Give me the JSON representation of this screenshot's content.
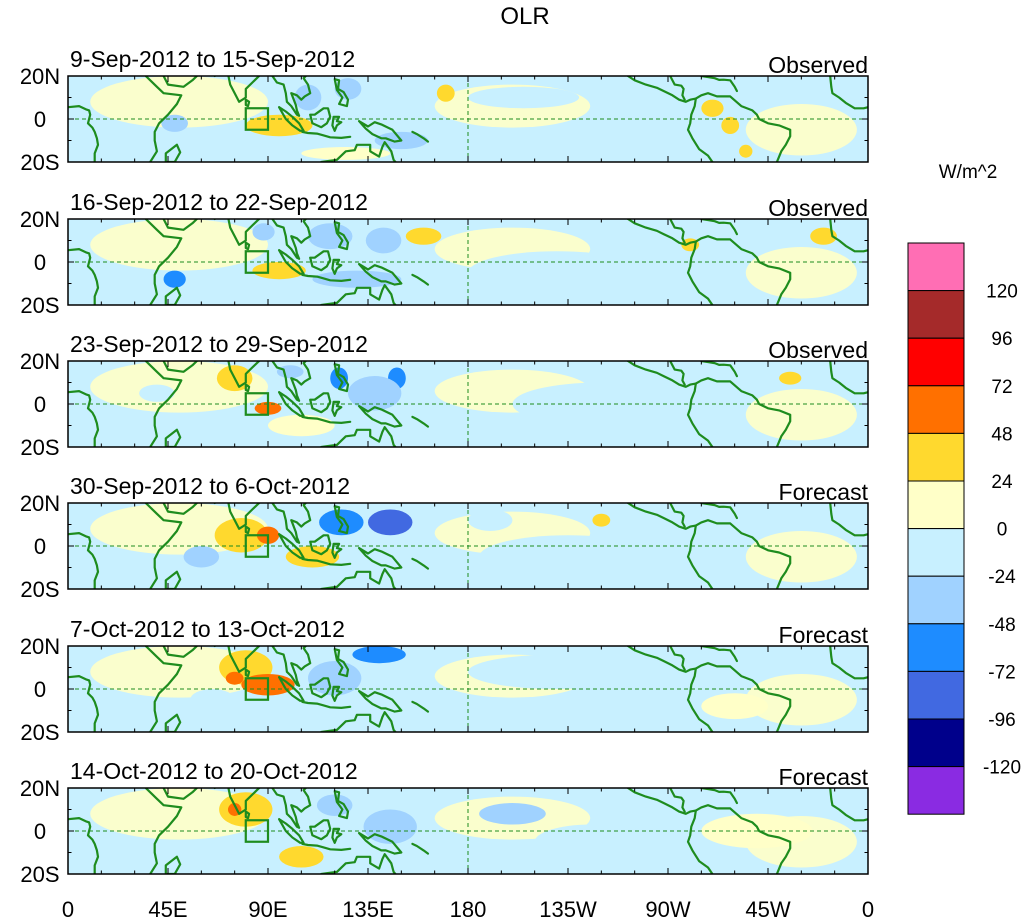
{
  "chart_data": {
    "type": "heatmap",
    "title": "OLR",
    "units_label": "W/m^2",
    "x_ticks": [
      {
        "lon": 0,
        "label": "0"
      },
      {
        "lon": 45,
        "label": "45E"
      },
      {
        "lon": 90,
        "label": "90E"
      },
      {
        "lon": 135,
        "label": "135E"
      },
      {
        "lon": 180,
        "label": "180"
      },
      {
        "lon": 225,
        "label": "135W"
      },
      {
        "lon": 270,
        "label": "90W"
      },
      {
        "lon": 315,
        "label": "45W"
      },
      {
        "lon": 360,
        "label": "0"
      }
    ],
    "y_ticks": [
      {
        "lat": 20,
        "label": "20N"
      },
      {
        "lat": 0,
        "label": "0"
      },
      {
        "lat": -20,
        "label": "20S"
      }
    ],
    "xlim": [
      0,
      360
    ],
    "ylim": [
      -20,
      20
    ],
    "colorbar": {
      "levels": [
        "120",
        "96",
        "72",
        "48",
        "24",
        "0",
        "-24",
        "-48",
        "-72",
        "-96",
        "-120"
      ],
      "colors": [
        "#ff6eb4",
        "#a52a2a",
        "#ff0000",
        "#ff7000",
        "#ffd92e",
        "#ffffc8",
        "#c8f0ff",
        "#a0d2ff",
        "#1e8cff",
        "#4169e1",
        "#00008b",
        "#8a2be2"
      ]
    },
    "box_region": {
      "lon": [
        80,
        90
      ],
      "lat": [
        -5,
        5
      ]
    },
    "panels": [
      {
        "date_range": "9-Sep-2012 to 15-Sep-2012",
        "status": "Observed",
        "anomalies": [
          {
            "lon": 48,
            "lat": -2,
            "rlon": 6,
            "rlat": 4,
            "value": -40
          },
          {
            "lon": 95,
            "lat": -3,
            "rlon": 15,
            "rlat": 5,
            "value": 30
          },
          {
            "lon": 108,
            "lat": 10,
            "rlon": 6,
            "rlat": 6,
            "value": -30
          },
          {
            "lon": 126,
            "lat": 14,
            "rlon": 6,
            "rlat": 5,
            "value": -35
          },
          {
            "lon": 150,
            "lat": -10,
            "rlon": 12,
            "rlat": 4,
            "value": -30
          },
          {
            "lon": 205,
            "lat": 10,
            "rlon": 25,
            "rlat": 5,
            "value": -20
          },
          {
            "lon": 125,
            "lat": -16,
            "rlon": 20,
            "rlat": 3,
            "value": 12
          },
          {
            "lon": 238,
            "lat": -10,
            "rlon": 20,
            "rlat": 5,
            "value": -15
          },
          {
            "lon": 298,
            "lat": -3,
            "rlon": 4,
            "rlat": 4,
            "value": 30
          },
          {
            "lon": 290,
            "lat": 5,
            "rlon": 5,
            "rlat": 4,
            "value": 28
          },
          {
            "lon": 305,
            "lat": -15,
            "rlon": 3,
            "rlat": 3,
            "value": 26
          },
          {
            "lon": 170,
            "lat": 12,
            "rlon": 4,
            "rlat": 4,
            "value": 28
          }
        ]
      },
      {
        "date_range": "16-Sep-2012 to 22-Sep-2012",
        "status": "Observed",
        "anomalies": [
          {
            "lon": 48,
            "lat": -8,
            "rlon": 5,
            "rlat": 4,
            "value": -60
          },
          {
            "lon": 95,
            "lat": -4,
            "rlon": 12,
            "rlat": 4,
            "value": 30
          },
          {
            "lon": 118,
            "lat": 12,
            "rlon": 10,
            "rlat": 6,
            "value": -35
          },
          {
            "lon": 142,
            "lat": 10,
            "rlon": 8,
            "rlat": 6,
            "value": -40
          },
          {
            "lon": 160,
            "lat": 12,
            "rlon": 8,
            "rlat": 4,
            "value": 30
          },
          {
            "lon": 130,
            "lat": -8,
            "rlon": 20,
            "rlat": 4,
            "value": -28
          },
          {
            "lon": 280,
            "lat": 8,
            "rlon": 4,
            "rlat": 3,
            "value": 30
          },
          {
            "lon": 340,
            "lat": 12,
            "rlon": 6,
            "rlat": 4,
            "value": 30
          },
          {
            "lon": 88,
            "lat": 14,
            "rlon": 5,
            "rlat": 4,
            "value": -30
          },
          {
            "lon": 220,
            "lat": -5,
            "rlon": 40,
            "rlat": 10,
            "value": -15
          }
        ]
      },
      {
        "date_range": "23-Sep-2012 to 29-Sep-2012",
        "status": "Observed",
        "anomalies": [
          {
            "lon": 75,
            "lat": 12,
            "rlon": 8,
            "rlat": 6,
            "value": 30
          },
          {
            "lon": 90,
            "lat": -2,
            "rlon": 6,
            "rlat": 3,
            "value": 50
          },
          {
            "lon": 122,
            "lat": 12,
            "rlon": 4,
            "rlat": 5,
            "value": -60
          },
          {
            "lon": 148,
            "lat": 12,
            "rlon": 4,
            "rlat": 5,
            "value": -60
          },
          {
            "lon": 138,
            "lat": 5,
            "rlon": 12,
            "rlat": 8,
            "value": -30
          },
          {
            "lon": 105,
            "lat": -10,
            "rlon": 15,
            "rlat": 5,
            "value": 20
          },
          {
            "lon": 325,
            "lat": 12,
            "rlon": 5,
            "rlat": 3,
            "value": 30
          },
          {
            "lon": 100,
            "lat": 15,
            "rlon": 6,
            "rlat": 3,
            "value": -30
          },
          {
            "lon": 40,
            "lat": 5,
            "rlon": 8,
            "rlat": 4,
            "value": -20
          },
          {
            "lon": 240,
            "lat": 0,
            "rlon": 40,
            "rlat": 10,
            "value": -12
          }
        ]
      },
      {
        "date_range": "30-Sep-2012 to 6-Oct-2012",
        "status": "Forecast",
        "anomalies": [
          {
            "lon": 78,
            "lat": 5,
            "rlon": 12,
            "rlat": 8,
            "value": 35
          },
          {
            "lon": 90,
            "lat": 5,
            "rlon": 5,
            "rlat": 4,
            "value": 55
          },
          {
            "lon": 123,
            "lat": 11,
            "rlon": 10,
            "rlat": 6,
            "value": -65
          },
          {
            "lon": 145,
            "lat": 11,
            "rlon": 10,
            "rlat": 6,
            "value": -75
          },
          {
            "lon": 60,
            "lat": -5,
            "rlon": 8,
            "rlat": 5,
            "value": -30
          },
          {
            "lon": 110,
            "lat": -5,
            "rlon": 12,
            "rlat": 5,
            "value": 30
          },
          {
            "lon": 190,
            "lat": 12,
            "rlon": 10,
            "rlat": 5,
            "value": -20
          },
          {
            "lon": 240,
            "lat": 12,
            "rlon": 4,
            "rlat": 3,
            "value": 40
          },
          {
            "lon": 225,
            "lat": -5,
            "rlon": 40,
            "rlat": 10,
            "value": -12
          }
        ]
      },
      {
        "date_range": "7-Oct-2012 to 13-Oct-2012",
        "status": "Forecast",
        "anomalies": [
          {
            "lon": 80,
            "lat": 10,
            "rlon": 12,
            "rlat": 8,
            "value": 35
          },
          {
            "lon": 90,
            "lat": 2,
            "rlon": 12,
            "rlat": 5,
            "value": 50
          },
          {
            "lon": 75,
            "lat": 5,
            "rlon": 4,
            "rlat": 3,
            "value": 55
          },
          {
            "lon": 140,
            "lat": 16,
            "rlon": 12,
            "rlat": 4,
            "value": -60
          },
          {
            "lon": 120,
            "lat": 5,
            "rlon": 12,
            "rlat": 8,
            "value": -40
          },
          {
            "lon": 65,
            "lat": -5,
            "rlon": 10,
            "rlat": 5,
            "value": -20
          },
          {
            "lon": 220,
            "lat": 8,
            "rlon": 40,
            "rlat": 8,
            "value": -12
          },
          {
            "lon": 300,
            "lat": -8,
            "rlon": 15,
            "rlat": 6,
            "value": 10
          }
        ]
      },
      {
        "date_range": "14-Oct-2012 to 20-Oct-2012",
        "status": "Forecast",
        "anomalies": [
          {
            "lon": 80,
            "lat": 10,
            "rlon": 12,
            "rlat": 8,
            "value": 35
          },
          {
            "lon": 75,
            "lat": 10,
            "rlon": 3,
            "rlat": 3,
            "value": 50
          },
          {
            "lon": 105,
            "lat": -12,
            "rlon": 10,
            "rlat": 5,
            "value": 30
          },
          {
            "lon": 148,
            "lat": 0,
            "rlon": 4,
            "rlat": 4,
            "value": -65
          },
          {
            "lon": 145,
            "lat": 2,
            "rlon": 12,
            "rlat": 8,
            "value": -35
          },
          {
            "lon": 120,
            "lat": 12,
            "rlon": 8,
            "rlat": 5,
            "value": -30
          },
          {
            "lon": 200,
            "lat": 8,
            "rlon": 15,
            "rlat": 5,
            "value": -25
          },
          {
            "lon": 235,
            "lat": -5,
            "rlon": 25,
            "rlat": 8,
            "value": -15
          },
          {
            "lon": 310,
            "lat": 0,
            "rlon": 25,
            "rlat": 8,
            "value": 10
          }
        ]
      }
    ]
  }
}
